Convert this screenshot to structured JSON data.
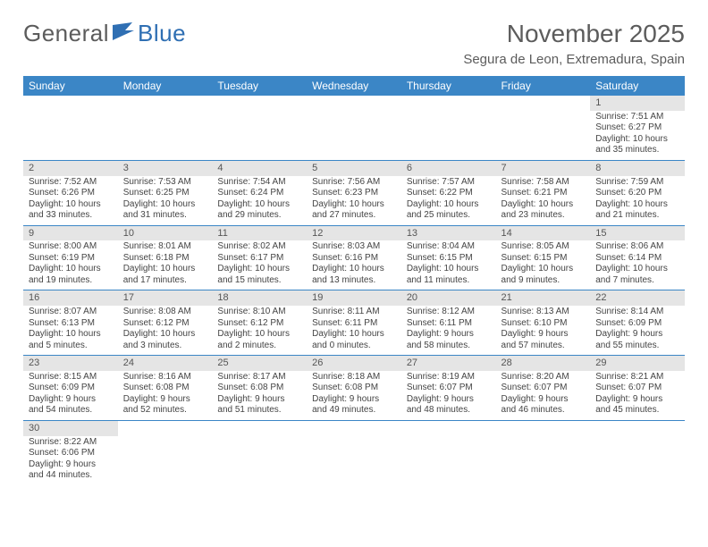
{
  "logo": {
    "text1": "General",
    "text2": "Blue"
  },
  "header": {
    "title": "November 2025",
    "location": "Segura de Leon, Extremadura, Spain"
  },
  "colors": {
    "accent": "#3b86c6",
    "gray_band": "#e5e5e5",
    "text": "#444444",
    "logo_gray": "#5c5c5c",
    "logo_blue": "#2f6fb3",
    "background": "#ffffff"
  },
  "typography": {
    "title_fontsize": 28,
    "location_fontsize": 15,
    "dayheader_fontsize": 12,
    "cell_fontsize": 10
  },
  "calendar": {
    "type": "table",
    "columns": [
      "Sunday",
      "Monday",
      "Tuesday",
      "Wednesday",
      "Thursday",
      "Friday",
      "Saturday"
    ],
    "weeks": [
      [
        null,
        null,
        null,
        null,
        null,
        null,
        {
          "n": "1",
          "sunrise": "Sunrise: 7:51 AM",
          "sunset": "Sunset: 6:27 PM",
          "daylight": "Daylight: 10 hours and 35 minutes."
        }
      ],
      [
        {
          "n": "2",
          "sunrise": "Sunrise: 7:52 AM",
          "sunset": "Sunset: 6:26 PM",
          "daylight": "Daylight: 10 hours and 33 minutes."
        },
        {
          "n": "3",
          "sunrise": "Sunrise: 7:53 AM",
          "sunset": "Sunset: 6:25 PM",
          "daylight": "Daylight: 10 hours and 31 minutes."
        },
        {
          "n": "4",
          "sunrise": "Sunrise: 7:54 AM",
          "sunset": "Sunset: 6:24 PM",
          "daylight": "Daylight: 10 hours and 29 minutes."
        },
        {
          "n": "5",
          "sunrise": "Sunrise: 7:56 AM",
          "sunset": "Sunset: 6:23 PM",
          "daylight": "Daylight: 10 hours and 27 minutes."
        },
        {
          "n": "6",
          "sunrise": "Sunrise: 7:57 AM",
          "sunset": "Sunset: 6:22 PM",
          "daylight": "Daylight: 10 hours and 25 minutes."
        },
        {
          "n": "7",
          "sunrise": "Sunrise: 7:58 AM",
          "sunset": "Sunset: 6:21 PM",
          "daylight": "Daylight: 10 hours and 23 minutes."
        },
        {
          "n": "8",
          "sunrise": "Sunrise: 7:59 AM",
          "sunset": "Sunset: 6:20 PM",
          "daylight": "Daylight: 10 hours and 21 minutes."
        }
      ],
      [
        {
          "n": "9",
          "sunrise": "Sunrise: 8:00 AM",
          "sunset": "Sunset: 6:19 PM",
          "daylight": "Daylight: 10 hours and 19 minutes."
        },
        {
          "n": "10",
          "sunrise": "Sunrise: 8:01 AM",
          "sunset": "Sunset: 6:18 PM",
          "daylight": "Daylight: 10 hours and 17 minutes."
        },
        {
          "n": "11",
          "sunrise": "Sunrise: 8:02 AM",
          "sunset": "Sunset: 6:17 PM",
          "daylight": "Daylight: 10 hours and 15 minutes."
        },
        {
          "n": "12",
          "sunrise": "Sunrise: 8:03 AM",
          "sunset": "Sunset: 6:16 PM",
          "daylight": "Daylight: 10 hours and 13 minutes."
        },
        {
          "n": "13",
          "sunrise": "Sunrise: 8:04 AM",
          "sunset": "Sunset: 6:15 PM",
          "daylight": "Daylight: 10 hours and 11 minutes."
        },
        {
          "n": "14",
          "sunrise": "Sunrise: 8:05 AM",
          "sunset": "Sunset: 6:15 PM",
          "daylight": "Daylight: 10 hours and 9 minutes."
        },
        {
          "n": "15",
          "sunrise": "Sunrise: 8:06 AM",
          "sunset": "Sunset: 6:14 PM",
          "daylight": "Daylight: 10 hours and 7 minutes."
        }
      ],
      [
        {
          "n": "16",
          "sunrise": "Sunrise: 8:07 AM",
          "sunset": "Sunset: 6:13 PM",
          "daylight": "Daylight: 10 hours and 5 minutes."
        },
        {
          "n": "17",
          "sunrise": "Sunrise: 8:08 AM",
          "sunset": "Sunset: 6:12 PM",
          "daylight": "Daylight: 10 hours and 3 minutes."
        },
        {
          "n": "18",
          "sunrise": "Sunrise: 8:10 AM",
          "sunset": "Sunset: 6:12 PM",
          "daylight": "Daylight: 10 hours and 2 minutes."
        },
        {
          "n": "19",
          "sunrise": "Sunrise: 8:11 AM",
          "sunset": "Sunset: 6:11 PM",
          "daylight": "Daylight: 10 hours and 0 minutes."
        },
        {
          "n": "20",
          "sunrise": "Sunrise: 8:12 AM",
          "sunset": "Sunset: 6:11 PM",
          "daylight": "Daylight: 9 hours and 58 minutes."
        },
        {
          "n": "21",
          "sunrise": "Sunrise: 8:13 AM",
          "sunset": "Sunset: 6:10 PM",
          "daylight": "Daylight: 9 hours and 57 minutes."
        },
        {
          "n": "22",
          "sunrise": "Sunrise: 8:14 AM",
          "sunset": "Sunset: 6:09 PM",
          "daylight": "Daylight: 9 hours and 55 minutes."
        }
      ],
      [
        {
          "n": "23",
          "sunrise": "Sunrise: 8:15 AM",
          "sunset": "Sunset: 6:09 PM",
          "daylight": "Daylight: 9 hours and 54 minutes."
        },
        {
          "n": "24",
          "sunrise": "Sunrise: 8:16 AM",
          "sunset": "Sunset: 6:08 PM",
          "daylight": "Daylight: 9 hours and 52 minutes."
        },
        {
          "n": "25",
          "sunrise": "Sunrise: 8:17 AM",
          "sunset": "Sunset: 6:08 PM",
          "daylight": "Daylight: 9 hours and 51 minutes."
        },
        {
          "n": "26",
          "sunrise": "Sunrise: 8:18 AM",
          "sunset": "Sunset: 6:08 PM",
          "daylight": "Daylight: 9 hours and 49 minutes."
        },
        {
          "n": "27",
          "sunrise": "Sunrise: 8:19 AM",
          "sunset": "Sunset: 6:07 PM",
          "daylight": "Daylight: 9 hours and 48 minutes."
        },
        {
          "n": "28",
          "sunrise": "Sunrise: 8:20 AM",
          "sunset": "Sunset: 6:07 PM",
          "daylight": "Daylight: 9 hours and 46 minutes."
        },
        {
          "n": "29",
          "sunrise": "Sunrise: 8:21 AM",
          "sunset": "Sunset: 6:07 PM",
          "daylight": "Daylight: 9 hours and 45 minutes."
        }
      ],
      [
        {
          "n": "30",
          "sunrise": "Sunrise: 8:22 AM",
          "sunset": "Sunset: 6:06 PM",
          "daylight": "Daylight: 9 hours and 44 minutes."
        },
        null,
        null,
        null,
        null,
        null,
        null
      ]
    ]
  }
}
